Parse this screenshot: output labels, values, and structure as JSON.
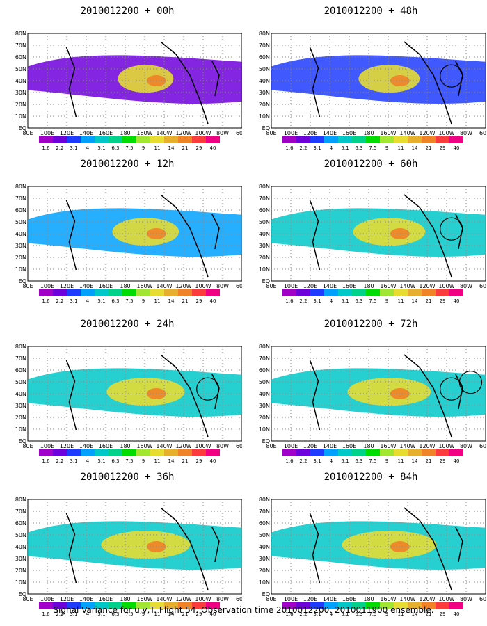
{
  "panels": [
    {
      "title": "2010012200 + 00h",
      "circles": []
    },
    {
      "title": "2010012200 + 48h",
      "circles": [
        "small"
      ]
    },
    {
      "title": "2010012200 + 12h",
      "circles": []
    },
    {
      "title": "2010012200 + 60h",
      "circles": [
        "small"
      ]
    },
    {
      "title": "2010012200 + 24h",
      "circles": [
        "small"
      ]
    },
    {
      "title": "2010012200 + 72h",
      "circles": [
        "small",
        "small"
      ]
    },
    {
      "title": "2010012200 + 36h",
      "circles": []
    },
    {
      "title": "2010012200 + 84h",
      "circles": []
    }
  ],
  "map": {
    "lat_labels": [
      "EQ",
      "10N",
      "20N",
      "30N",
      "40N",
      "50N",
      "60N",
      "70N",
      "80N"
    ],
    "lon_labels": [
      "80E",
      "100E",
      "120E",
      "140E",
      "160E",
      "180",
      "160W",
      "140W",
      "120W",
      "100W",
      "80W",
      "60W"
    ]
  },
  "colorbar": {
    "labels": [
      "1.6",
      "2.2",
      "3.1",
      "4",
      "5.1",
      "6.3",
      "7.5",
      "9",
      "11",
      "14",
      "21",
      "29",
      "40"
    ],
    "colors": [
      "#a000c8",
      "#6e00dc",
      "#1e3cff",
      "#00a0ff",
      "#00c8c8",
      "#00d28c",
      "#00dc00",
      "#a0e632",
      "#e6dc32",
      "#e6af2d",
      "#f08228",
      "#fa3c3c",
      "#f00082"
    ]
  },
  "footer": "Signal Variance for u,v,T. Flight 54. Observation time 2010012200. 2010011900 ensemble."
}
